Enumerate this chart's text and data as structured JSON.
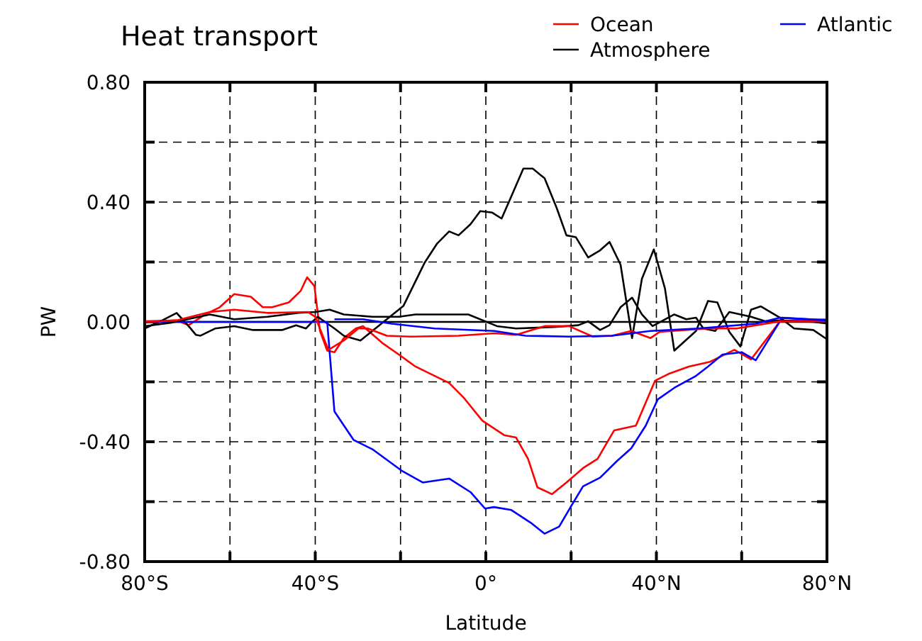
{
  "chart_data": {
    "type": "line",
    "title": "Heat transport",
    "xlabel": "Latitude",
    "ylabel": "PW",
    "xlim": [
      -80,
      80
    ],
    "ylim": [
      -0.8,
      0.8
    ],
    "xticks": [
      {
        "value": -80,
        "label": "80°S"
      },
      {
        "value": -60,
        "label": null
      },
      {
        "value": -40,
        "label": "40°S"
      },
      {
        "value": -20,
        "label": null
      },
      {
        "value": 0,
        "label": "0°"
      },
      {
        "value": 20,
        "label": null
      },
      {
        "value": 40,
        "label": "40°N"
      },
      {
        "value": 60,
        "label": null
      },
      {
        "value": 80,
        "label": "80°N"
      }
    ],
    "yticks": [
      {
        "value": -0.8,
        "label": "-0.80"
      },
      {
        "value": -0.6,
        "label": null
      },
      {
        "value": -0.4,
        "label": "-0.40"
      },
      {
        "value": -0.2,
        "label": null
      },
      {
        "value": 0,
        "label": "0.00"
      },
      {
        "value": 0.2,
        "label": null
      },
      {
        "value": 0.4,
        "label": "0.40"
      },
      {
        "value": 0.6,
        "label": null
      },
      {
        "value": 0.8,
        "label": "0.80"
      }
    ],
    "grid": true,
    "legend": "top right",
    "line_style": "solid",
    "marker": "none",
    "ref_lines": [
      {
        "axis": "y",
        "value": 0,
        "color": "#000000",
        "line_style": "solid"
      }
    ],
    "series": [
      {
        "name": "Ocean",
        "color": "#ff0000",
        "x": [
          -80,
          -72.5,
          -69.7,
          -65.8,
          -62.4,
          -59,
          -55.1,
          -52.3,
          -50.1,
          -46.2,
          -43.4,
          -41.9,
          -40.2,
          -38.9,
          -37.2,
          -35.5,
          -33.3,
          -30.5,
          -28.8,
          -24.3,
          -20.4,
          -16.5,
          -12,
          -8.6,
          -5.3,
          -0.8,
          4.3,
          7.1,
          9.9,
          12.1,
          15.5,
          18.9,
          22.8,
          26.2,
          30.1,
          35.2,
          39.7,
          43.1,
          47.6,
          52.6,
          58.3,
          62.2,
          69,
          80
        ],
        "values": [
          0.002,
          0.005,
          -0.011,
          0.025,
          0.049,
          0.093,
          0.084,
          0.049,
          0.049,
          0.065,
          0.104,
          0.149,
          0.12,
          -0.03,
          -0.096,
          -0.101,
          -0.054,
          -0.022,
          -0.014,
          -0.07,
          -0.109,
          -0.149,
          -0.18,
          -0.204,
          -0.251,
          -0.33,
          -0.378,
          -0.386,
          -0.457,
          -0.552,
          -0.575,
          -0.536,
          -0.488,
          -0.457,
          -0.362,
          -0.346,
          -0.196,
          -0.172,
          -0.149,
          -0.133,
          -0.093,
          -0.125,
          0.002,
          0.009
        ]
      },
      {
        "name": "Atmosphere",
        "color": "#000000",
        "x": [
          -80,
          -75.9,
          -72.5,
          -69.7,
          -68,
          -66.9,
          -63.5,
          -59,
          -54.6,
          -47.8,
          -44.5,
          -42.2,
          -40.6,
          -39.4,
          -35.5,
          -33.3,
          -29.4,
          -19.3,
          -14.3,
          -11.4,
          -8.6,
          -6.4,
          -3.6,
          -1.3,
          1.5,
          3.7,
          6.5,
          8.8,
          11,
          13.8,
          16.6,
          18.9,
          21.1,
          24,
          26.8,
          29,
          31.6,
          34.3,
          36.6,
          39.4,
          42,
          44.2,
          49.3,
          52.1,
          54.3,
          57.1,
          59.7,
          62.2,
          64.5,
          69,
          72.3,
          76.8,
          80
        ],
        "values": [
          -0.022,
          0.005,
          0.03,
          -0.014,
          -0.043,
          -0.046,
          -0.022,
          -0.014,
          -0.027,
          -0.027,
          -0.011,
          -0.022,
          0.002,
          0.017,
          -0.022,
          -0.046,
          -0.062,
          0.054,
          0.199,
          0.262,
          0.302,
          0.289,
          0.326,
          0.37,
          0.365,
          0.345,
          0.436,
          0.512,
          0.512,
          0.479,
          0.381,
          0.289,
          0.283,
          0.215,
          0.239,
          0.267,
          0.191,
          -0.054,
          0.144,
          0.242,
          0.112,
          -0.096,
          -0.03,
          0.07,
          0.065,
          -0.033,
          -0.082,
          0.041,
          0.052,
          0.014,
          -0.022,
          -0.027,
          -0.058
        ]
      },
      {
        "name": "Atlantic",
        "color": "#0000ff",
        "x": [
          -80,
          -37.2,
          -35.5,
          -31,
          -26.6,
          -19.8,
          -14.8,
          -8.6,
          -3.6,
          -0.2,
          1.9,
          6,
          10.5,
          13.8,
          17.2,
          20,
          22.8,
          26.8,
          30.7,
          34.1,
          37.5,
          40.3,
          44.2,
          49.3,
          52.1,
          55.5,
          60,
          63.3,
          69.5,
          80
        ],
        "values": [
          0,
          0,
          -0.299,
          -0.394,
          -0.425,
          -0.496,
          -0.536,
          -0.523,
          -0.568,
          -0.623,
          -0.618,
          -0.628,
          -0.67,
          -0.707,
          -0.683,
          -0.615,
          -0.549,
          -0.52,
          -0.465,
          -0.422,
          -0.346,
          -0.259,
          -0.22,
          -0.18,
          -0.149,
          -0.109,
          -0.101,
          -0.128,
          0.014,
          0.006
        ]
      },
      {
        "color": "#000000",
        "x": [
          -80,
          -73.6,
          -64.7,
          -59,
          -51.2,
          -43.9,
          -40,
          -36.6,
          -33.3,
          -26.6,
          -20.4,
          -16.5,
          -4.1,
          2.6,
          7.1,
          16.1,
          21.7,
          24,
          26.8,
          29,
          31.6,
          34.3,
          36.6,
          39.1,
          44.2,
          47,
          49.3,
          51,
          53.8,
          57.1,
          62.2,
          65.6,
          69,
          76.8,
          80
        ],
        "values": [
          -0.014,
          -0.002,
          0.025,
          0.009,
          0.017,
          0.03,
          0.033,
          0.041,
          0.025,
          0.017,
          0.017,
          0.025,
          0.025,
          -0.014,
          -0.022,
          -0.017,
          -0.011,
          0.002,
          -0.027,
          -0.011,
          0.049,
          0.081,
          0.025,
          -0.014,
          0.025,
          0.009,
          0.014,
          -0.022,
          -0.03,
          0.033,
          0.017,
          0.002,
          0.005,
          0,
          -0.005
        ]
      },
      {
        "color": "#ff0000",
        "x": [
          -80,
          -72.5,
          -64.7,
          -59,
          -51.2,
          -41.7,
          -40,
          -37.8,
          -36.9,
          -33.3,
          -29.9,
          -27.7,
          -23.2,
          -17.6,
          -6.4,
          2,
          7.1,
          13.8,
          19.5,
          25.1,
          29.6,
          34.1,
          38.6,
          40.8,
          52.1,
          58.8,
          69,
          80
        ],
        "values": [
          0,
          0.005,
          0.033,
          0.041,
          0.03,
          0.033,
          0.017,
          -0.062,
          -0.093,
          -0.062,
          -0.022,
          -0.022,
          -0.046,
          -0.049,
          -0.046,
          -0.038,
          -0.043,
          -0.014,
          -0.014,
          -0.049,
          -0.046,
          -0.03,
          -0.054,
          -0.033,
          -0.022,
          -0.022,
          0.002,
          0.002
        ]
      },
      {
        "color": "#0000ff",
        "x": [
          -35.5,
          -28.8,
          -22.1,
          -12,
          2,
          9.3,
          19.5,
          29.6,
          38.6,
          49.8,
          63.3,
          69,
          80
        ],
        "values": [
          0.009,
          0.009,
          -0.006,
          -0.022,
          -0.03,
          -0.046,
          -0.049,
          -0.046,
          -0.03,
          -0.022,
          -0.006,
          0.014,
          0.005
        ]
      }
    ]
  }
}
